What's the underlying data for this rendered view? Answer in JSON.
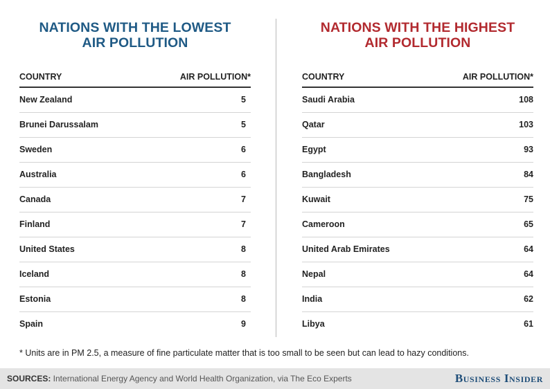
{
  "left_panel": {
    "title_line1": "NATIONS WITH THE LOWEST",
    "title_line2": "AIR POLLUTION",
    "col_country": "COUNTRY",
    "col_value": "AIR POLLUTION*",
    "rows": [
      {
        "country": "New Zealand",
        "value": "5"
      },
      {
        "country": "Brunei Darussalam",
        "value": "5"
      },
      {
        "country": "Sweden",
        "value": "6"
      },
      {
        "country": "Australia",
        "value": "6"
      },
      {
        "country": "Canada",
        "value": "7"
      },
      {
        "country": "Finland",
        "value": "7"
      },
      {
        "country": "United States",
        "value": "8"
      },
      {
        "country": "Iceland",
        "value": "8"
      },
      {
        "country": "Estonia",
        "value": "8"
      },
      {
        "country": "Spain",
        "value": "9"
      }
    ]
  },
  "right_panel": {
    "title_line1": "NATIONS WITH THE HIGHEST",
    "title_line2": "AIR POLLUTION",
    "col_country": "COUNTRY",
    "col_value": "AIR POLLUTION*",
    "rows": [
      {
        "country": "Saudi Arabia",
        "value": "108"
      },
      {
        "country": "Qatar",
        "value": "103"
      },
      {
        "country": "Egypt",
        "value": "93"
      },
      {
        "country": "Bangladesh",
        "value": "84"
      },
      {
        "country": "Kuwait",
        "value": "75"
      },
      {
        "country": "Cameroon",
        "value": "65"
      },
      {
        "country": "United Arab Emirates",
        "value": "64"
      },
      {
        "country": "Nepal",
        "value": "64"
      },
      {
        "country": "India",
        "value": "62"
      },
      {
        "country": "Libya",
        "value": "61"
      }
    ]
  },
  "footnote": "* Units are in PM 2.5, a measure of fine particulate matter that is too small to be seen but can lead to hazy conditions.",
  "footer": {
    "sources_label": "SOURCES:",
    "sources_text": " International Energy Agency and World Health Organization, via The Eco Experts",
    "brand": "Business Insider"
  },
  "colors": {
    "lowest_title": "#1f5a85",
    "highest_title": "#b22a2f",
    "brand": "#1f4e79"
  }
}
